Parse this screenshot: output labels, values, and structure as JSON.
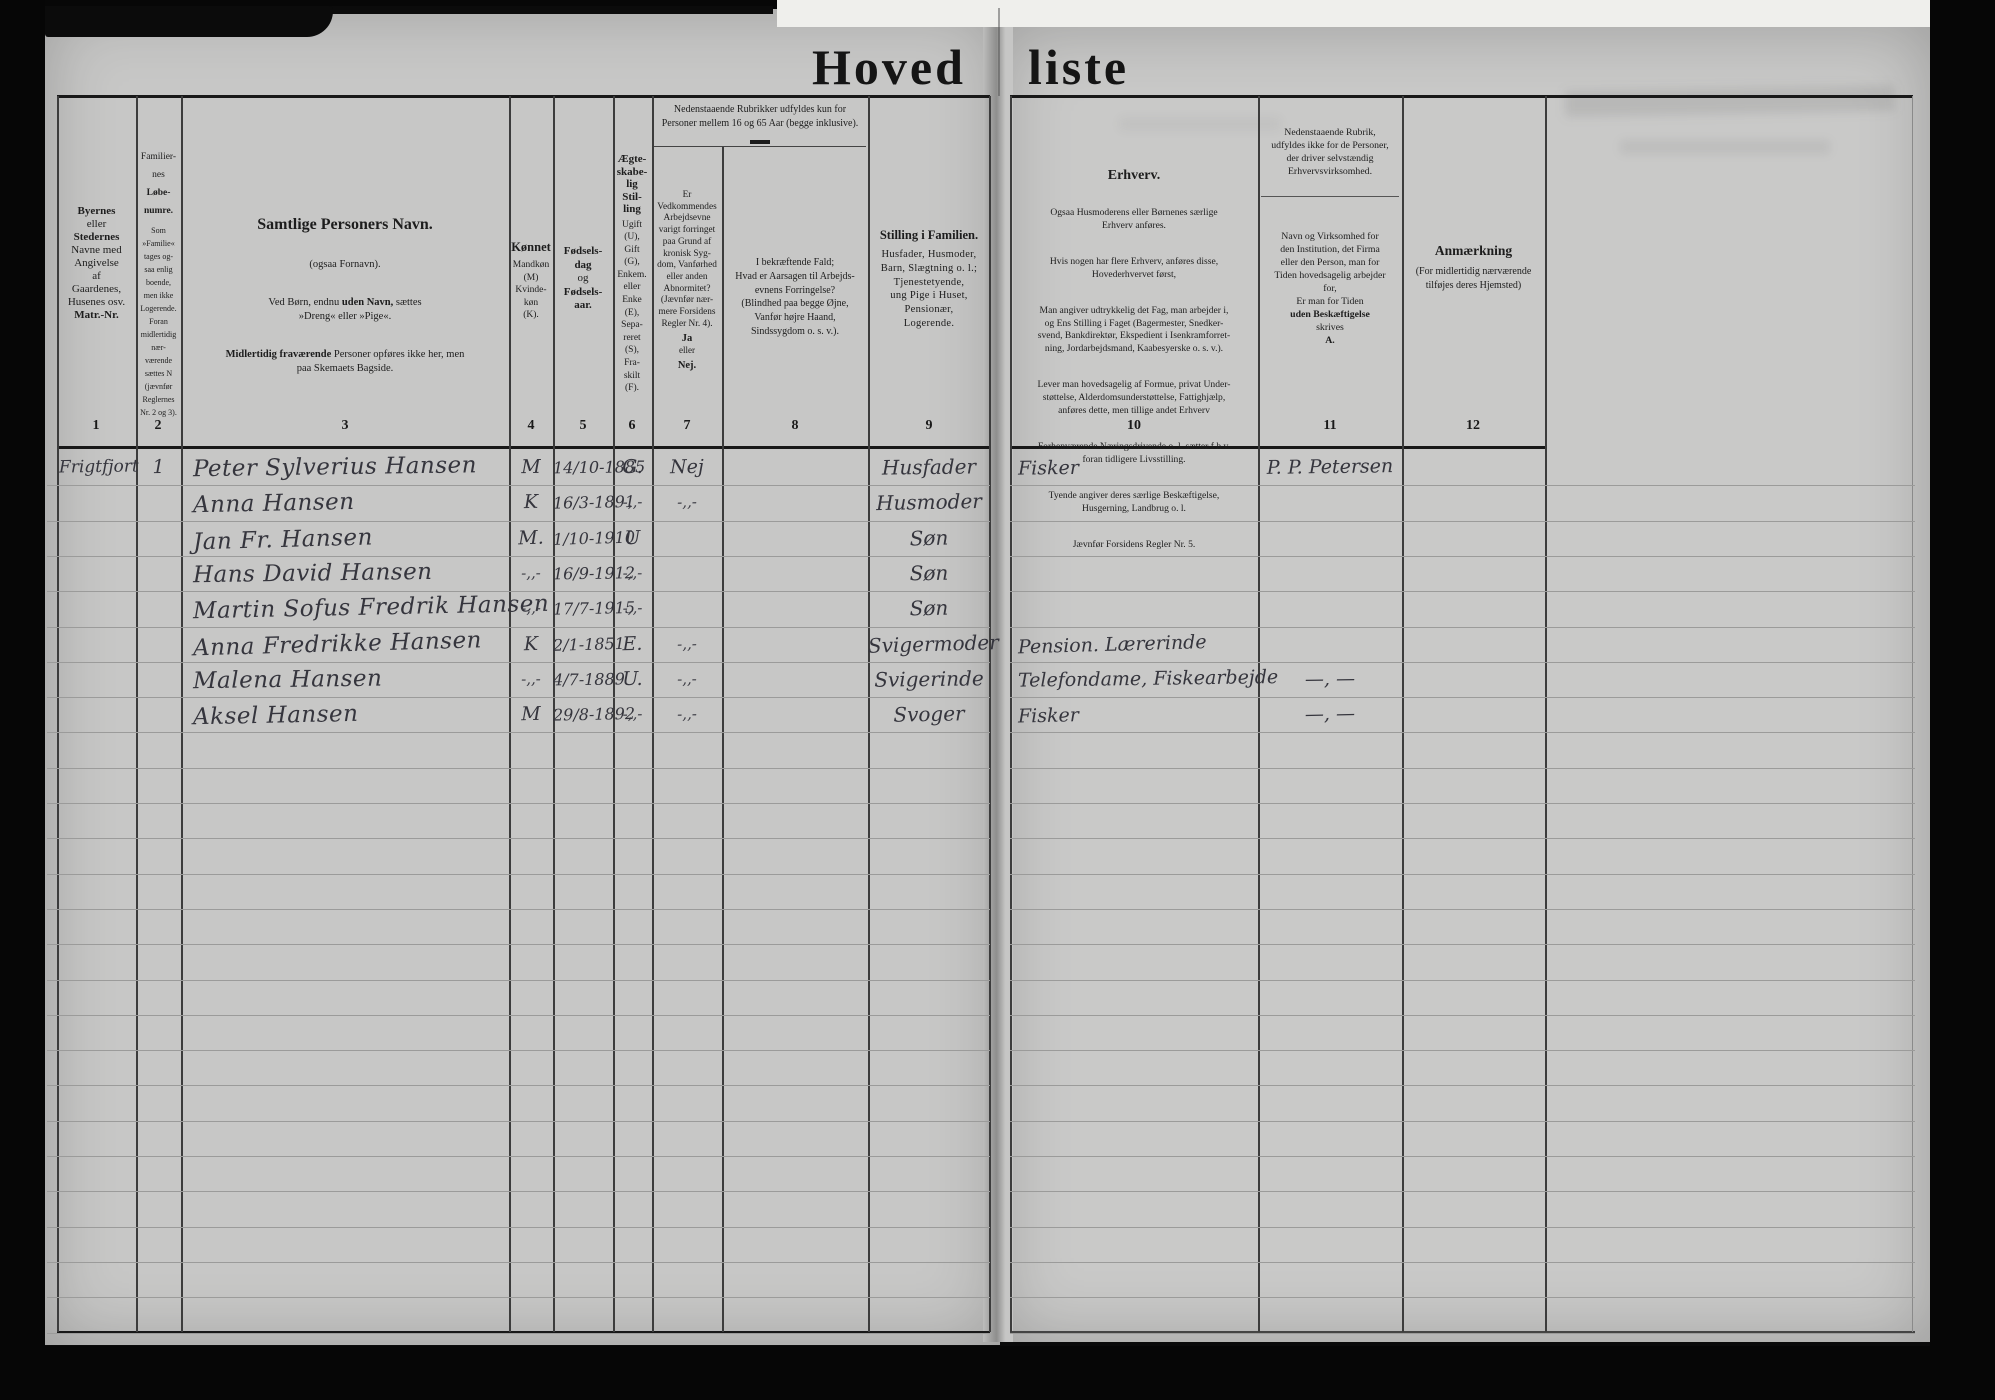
{
  "title": {
    "word1": "Hoved",
    "word2": "liste"
  },
  "header": {
    "c1_b1": "Byernes",
    "c1_n1": "eller",
    "c1_b2": "Stedernes",
    "c1_n2": "Navne med\nAngivelse\naf\nGaardenes,\nHusenes osv.",
    "c1_b3": "Matr.-Nr.",
    "c2_top1": "Familier-\nnes",
    "c2_top2": "Løbe-\nnumre.",
    "c2_small": "Som\n»Familie«\ntages og-\nsaa enlig\nboende,\nmen ikke\nLogerende.\nForan\nmidlertidig\nnær-\nværende\nsættes N\n(jævnfør\nReglernes\nNr. 2 og 3).",
    "c3_title": "Samtlige Personers Navn.",
    "c3_sub1": "(ogsaa Fornavn).",
    "c3_sub2_a": "Ved Børn, endnu ",
    "c3_sub2_b": "uden Navn,",
    "c3_sub2_c": " sættes",
    "c3_sub2_l2": "»Dreng« eller »Pige«.",
    "c3_sub3_b": "Midlertidig fraværende",
    "c3_sub3_rest": " Personer opføres ikke her, men",
    "c3_sub3_l2": "paa Skemaets Bagside.",
    "c4_title": "Kønnet",
    "c4_sub": "Mandkøn\n(M)\nKvinde-\nkøn\n(K).",
    "c5_b1": "Fødsels-\ndag",
    "c5_n1": "og",
    "c5_b2": "Fødsels-\naar.",
    "c6_title": "Ægte-\nskabe-\nlig\nStil-\nling",
    "c6_sub": "Ugift\n(U),\nGift\n(G),\nEnkem.\neller\nEnke\n(E),\nSepa-\nreret\n(S),\nFra-\nskilt\n(F).",
    "g78": "Nedenstaaende Rubrikker udfyldes kun for\nPersoner mellem 16 og 65 Aar (begge inklusive).",
    "c7_main": "Er\nVedkommendes\nArbejdsevne\nvarigt forringet\npaa Grund af\nkronisk Syg-\ndom, Vanførhed\neller anden\nAbnormitet?\n(Jævnfør nær-\nmere Forsidens\nRegler Nr. 4).",
    "c7_ja": "Ja",
    "c7_eller": "eller",
    "c7_nej": "Nej.",
    "c8": "I bekræftende Fald;\nHvad er Aarsagen til Arbejds-\nevnens Forringelse?\n(Blindhed paa begge Øjne,\nVanfør højre Haand,\nSindssygdom o. s. v.).",
    "c9_title": "Stilling i Familien.",
    "c9_sub": "Husfader, Husmoder,\nBarn, Slægtning o. l.;\nTjenestetyende,\nung Pige i Huset,\nPensionær,\nLogerende.",
    "c10_title": "Erhverv.",
    "c10_p1": "Ogsaa Husmoderens eller Børnenes særlige\nErhverv anføres.",
    "c10_p2": "Hvis nogen har flere Erhverv, anføres disse,\nHovederhvervet først,",
    "c10_p3": "Man angiver udtrykkelig det Fag, man arbejder i,\nog Ens Stilling i Faget (Bagermester, Snedker-\nsvend, Bankdirektør, Ekspedient i Isenkramforret-\nning, Jordarbejdsmand, Kaabesyerske o. s. v.).",
    "c10_p4": "Lever man hovedsagelig af Formue, privat Under-\nstøttelse, Alderdomsunderstøttelse, Fattighjælp,\nanføres dette, men tillige andet Erhverv",
    "c10_p5": "Forhenværende Næringsdrivende o. l. sætter f h v.\nforan tidligere Livsstilling.",
    "c10_p6": "Tyende angiver deres særlige Beskæftigelse,\nHusgerning, Landbrug o. l.",
    "c10_p7": "Jævnfør Forsidens Regler Nr. 5.",
    "c11_note": "Nedenstaaende Rubrik,\nudfyldes ikke for de Personer,\nder driver selvstændig\nErhvervsvirksomhed.",
    "c11_m1": "Navn og Virksomhed for\nden Institution, det Firma\neller den Person, man for\nTiden hovedsagelig arbejder\nfor,\nEr man for Tiden",
    "c11_m2": "uden Beskæftigelse",
    "c11_m3": "skrives",
    "c11_m4": "A.",
    "c12_title": "Anmærkning",
    "c12_sub": "(For midlertidig nærværende\ntilføjes deres Hjemsted)"
  },
  "column_numbers": [
    "1",
    "2",
    "3",
    "4",
    "5",
    "6",
    "7",
    "8",
    "9",
    "10",
    "11",
    "12"
  ],
  "table": {
    "rows": [
      [
        "Frigtfjort",
        "1",
        "Peter Sylverius Hansen",
        "M",
        "14/10-1885",
        "G.",
        "Nej",
        "",
        "Husfader",
        "Fisker",
        "P. P. Petersen",
        ""
      ],
      [
        "",
        "",
        "Anna Hansen",
        "K",
        "16/3-1891",
        "-,,-",
        "-,,-",
        "",
        "Husmoder",
        "",
        "",
        ""
      ],
      [
        "",
        "",
        "Jan Fr. Hansen",
        "M.",
        "1/10-1910",
        "U",
        "",
        "",
        "Søn",
        "",
        "",
        ""
      ],
      [
        "",
        "",
        "Hans David Hansen",
        "-,,-",
        "16/9-1912",
        "-,,-",
        "",
        "",
        "Søn",
        "",
        "",
        ""
      ],
      [
        "",
        "",
        "Martin Sofus Fredrik Hansen",
        "-,,-",
        "17/7-1915",
        "-,,-",
        "",
        "",
        "Søn",
        "",
        "",
        ""
      ],
      [
        "",
        "",
        "Anna Fredrikke Hansen",
        "K",
        "2/1-1851",
        "E.",
        "-,,-",
        "",
        "Svigermoder",
        "Pension. Lærerinde",
        "",
        ""
      ],
      [
        "",
        "",
        "Malena Hansen",
        "-,,-",
        "4/7-1889",
        "U.",
        "-,,-",
        "",
        "Svigerinde",
        "Telefondame, Fiskearbejde",
        "—, —",
        ""
      ],
      [
        "",
        "",
        "Aksel Hansen",
        "M",
        "29/8-1892",
        "-,,-",
        "-,,-",
        "",
        "Svoger",
        "Fisker",
        "—, —",
        ""
      ]
    ],
    "empty_row_count": 17
  }
}
